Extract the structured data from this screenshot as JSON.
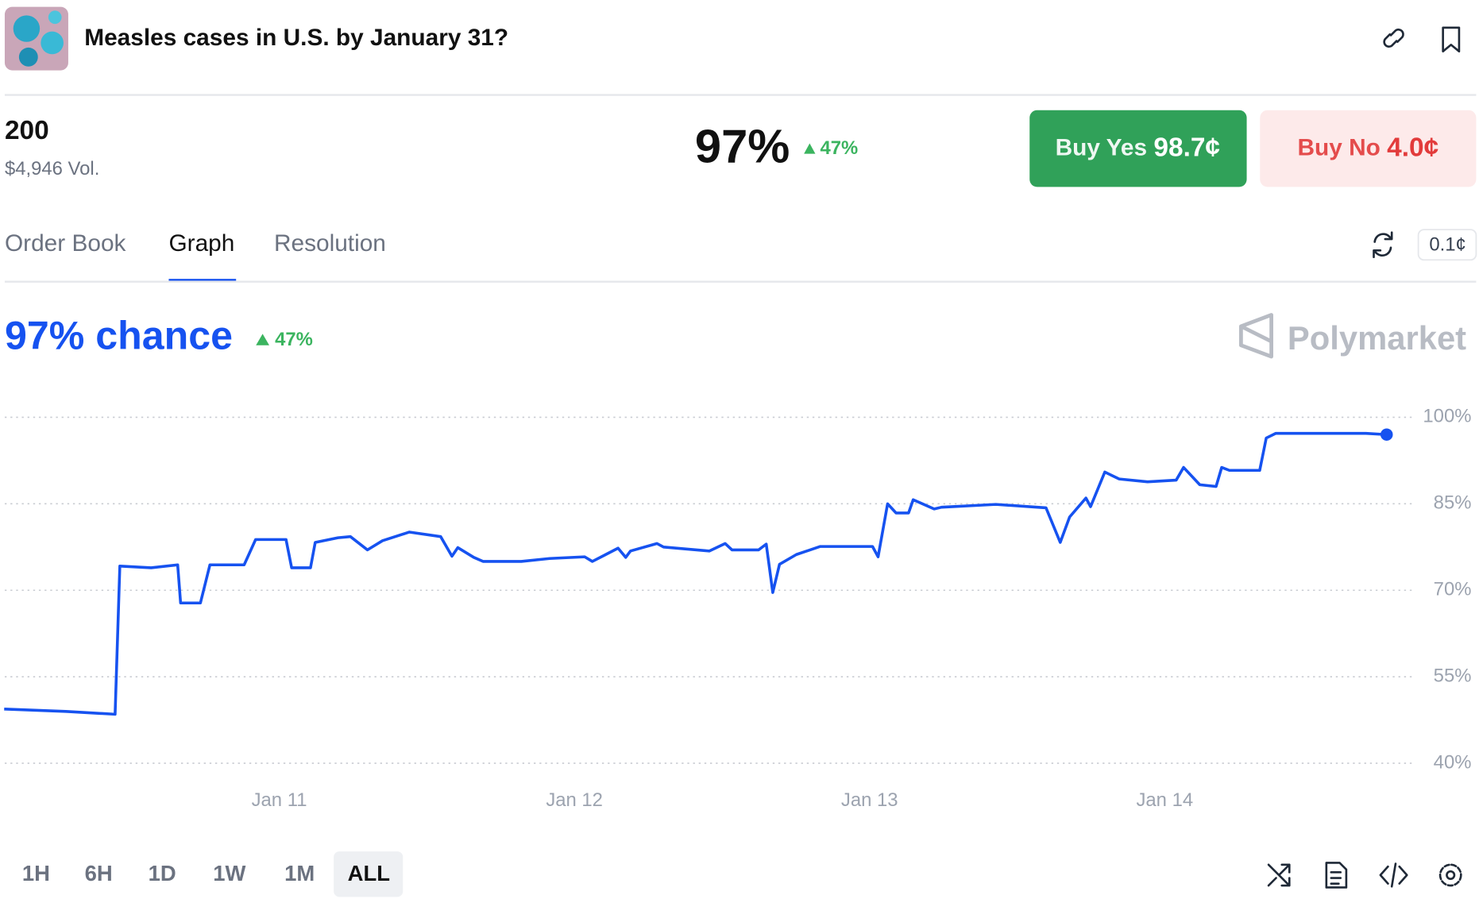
{
  "header": {
    "title": "Measles cases in U.S. by January 31?"
  },
  "market": {
    "outcome": "200",
    "volume": "$4,946 Vol.",
    "probability": "97%",
    "change": "47%",
    "buy_yes": {
      "label": "Buy Yes",
      "price": "98.7¢"
    },
    "buy_no": {
      "label": "Buy No",
      "price": "4.0¢"
    }
  },
  "tabs": [
    "Order Book",
    "Graph",
    "Resolution"
  ],
  "tick_size": "0.1¢",
  "chart_data": {
    "type": "line",
    "title": "97% chance",
    "change": "47%",
    "brand": "Polymarket",
    "x": [
      10.068,
      10.277,
      10.444,
      10.46,
      10.566,
      10.656,
      10.666,
      10.733,
      10.765,
      10.881,
      10.92,
      11.023,
      11.042,
      11.106,
      11.122,
      11.199,
      11.241,
      11.299,
      11.35,
      11.441,
      11.547,
      11.585,
      11.605,
      11.659,
      11.691,
      11.82,
      11.916,
      12.035,
      12.061,
      12.148,
      12.174,
      12.19,
      12.28,
      12.302,
      12.457,
      12.511,
      12.534,
      12.624,
      12.65,
      12.672,
      12.695,
      12.752,
      12.833,
      13.01,
      13.029,
      13.061,
      13.09,
      13.132,
      13.148,
      13.219,
      13.244,
      13.428,
      13.598,
      13.646,
      13.678,
      13.733,
      13.749,
      13.797,
      13.846,
      13.942,
      14.039,
      14.064,
      14.119,
      14.174,
      14.193,
      14.219,
      14.322,
      14.344,
      14.376,
      14.682,
      14.752
    ],
    "series": [
      {
        "color": "#1652f0",
        "values": [
          49.4,
          49,
          48.5,
          74.2,
          73.9,
          74.4,
          67.8,
          67.8,
          74.4,
          74.4,
          78.8,
          78.8,
          73.9,
          73.9,
          78.3,
          79.1,
          79.3,
          77,
          78.6,
          80.1,
          79.3,
          75.9,
          77.4,
          75.7,
          75,
          75,
          75.5,
          75.8,
          75,
          77.3,
          75.7,
          76.8,
          78.1,
          77.5,
          76.8,
          78.1,
          77,
          77,
          78,
          69.6,
          74.5,
          76.2,
          77.6,
          77.6,
          75.8,
          85,
          83.4,
          83.4,
          85.7,
          84.1,
          84.4,
          84.9,
          84.3,
          78.3,
          82.7,
          86,
          84.5,
          90.5,
          89.3,
          88.8,
          89.1,
          91.3,
          88.3,
          88,
          91.3,
          90.8,
          90.8,
          96.4,
          97.2,
          97.2,
          97
        ]
      }
    ],
    "xlim": [
      10.07,
      14.84
    ],
    "xticks": [
      {
        "value": 11,
        "label": "Jan 11"
      },
      {
        "value": 12,
        "label": "Jan 12"
      },
      {
        "value": 13,
        "label": "Jan 13"
      },
      {
        "value": 14,
        "label": "Jan 14"
      }
    ],
    "ylim": [
      40,
      100
    ],
    "yticks": [
      {
        "value": 100,
        "label": "100%"
      },
      {
        "value": 85,
        "label": "85%"
      },
      {
        "value": 70,
        "label": "70%"
      },
      {
        "value": 55,
        "label": "55%"
      },
      {
        "value": 40,
        "label": "40%"
      }
    ],
    "grid": true
  },
  "time_ranges": [
    "1H",
    "6H",
    "1D",
    "1W",
    "1M",
    "ALL"
  ]
}
